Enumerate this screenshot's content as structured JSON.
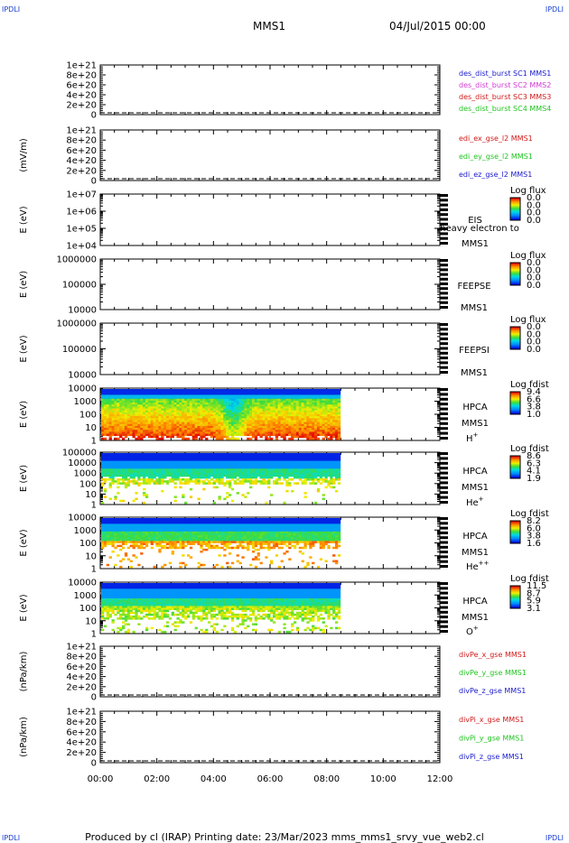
{
  "header": {
    "corner_left": "IPDLI",
    "corner_right": "IPDLI",
    "title": "MMS1",
    "date": "04/Jul/2015 00:00"
  },
  "footer": {
    "text": "Produced by cl (IRAP)   Printing date: 23/Mar/2023   mms_mms1_srvy_vue_web2.cl"
  },
  "colors": {
    "blue": "#1a1acc",
    "magenta": "#d13cd1",
    "red": "#d11a1a",
    "green": "#22c422",
    "dashed": "#000000"
  },
  "chart_data": [
    {
      "id": "p1",
      "type": "line",
      "ylabel": "",
      "yticks": [
        "1e+21",
        "8e+20",
        "6e+20",
        "4e+20",
        "2e+20",
        "0"
      ],
      "legend": [
        {
          "label": "des_dist_burst SC1 MMS1",
          "color": "blue"
        },
        {
          "label": "des_dist_burst SC2 MMS2",
          "color": "magenta"
        },
        {
          "label": "des_dist_burst SC3 MMS3",
          "color": "red"
        },
        {
          "label": "des_dist_burst SC4 MMS4",
          "color": "green"
        }
      ],
      "ylim": [
        0,
        1e+21
      ],
      "zero_line": true
    },
    {
      "id": "p2",
      "type": "line",
      "ylabel": "(mV/m)",
      "yticks": [
        "1e+21",
        "8e+20",
        "6e+20",
        "4e+20",
        "2e+20",
        "0"
      ],
      "legend": [
        {
          "label": "edi_ex_gse_l2 MMS1",
          "color": "red"
        },
        {
          "label": "edi_ey_gse_l2 MMS1",
          "color": "green"
        },
        {
          "label": "edi_ez_gse_l2 MMS1",
          "color": "blue"
        }
      ],
      "ylim": [
        0,
        1e+21
      ],
      "zero_line": true
    },
    {
      "id": "p3",
      "type": "heatmap",
      "ylabel": "E (eV)",
      "yticks": [
        "1e+07",
        "1e+06",
        "1e+05",
        "1e+04"
      ],
      "labels": [
        "EIS",
        "heavy electron to",
        "MMS1"
      ],
      "cbar_title": "Log flux",
      "cbar_ticks": [
        "0.0",
        "0.0",
        "0.0",
        "0.0"
      ]
    },
    {
      "id": "p4",
      "type": "heatmap",
      "ylabel": "E (eV)",
      "yticks": [
        "1000000",
        "100000",
        "10000"
      ],
      "labels": [
        "FEEPSE",
        "MMS1"
      ],
      "cbar_title": "Log flux",
      "cbar_ticks": [
        "0.0",
        "0.0",
        "0.0",
        "0.0"
      ]
    },
    {
      "id": "p5",
      "type": "heatmap",
      "ylabel": "E (eV)",
      "yticks": [
        "1000000",
        "100000",
        "10000"
      ],
      "labels": [
        "FEEPSI",
        "MMS1"
      ],
      "cbar_title": "Log flux",
      "cbar_ticks": [
        "0.0",
        "0.0",
        "0.0",
        "0.0"
      ]
    },
    {
      "id": "p6",
      "type": "heatmap",
      "ylabel": "E (eV)",
      "yticks": [
        "10000",
        "1000",
        "100",
        "10",
        "1"
      ],
      "labels": [
        "HPCA",
        "MMS1",
        "H+"
      ],
      "cbar_title": "Log fdist",
      "cbar_ticks": [
        "9.4",
        "6.6",
        "3.8",
        "1.0"
      ],
      "data_x_end_hours": 8.45,
      "profile": "hplus"
    },
    {
      "id": "p7",
      "type": "heatmap",
      "ylabel": "E (eV)",
      "yticks": [
        "100000",
        "10000",
        "1000",
        "100",
        "10",
        "1"
      ],
      "labels": [
        "HPCA",
        "MMS1",
        "He+"
      ],
      "cbar_title": "Log fdist",
      "cbar_ticks": [
        "8.6",
        "6.3",
        "4.1",
        "1.9"
      ],
      "data_x_end_hours": 8.45,
      "profile": "heplus"
    },
    {
      "id": "p8",
      "type": "heatmap",
      "ylabel": "E (eV)",
      "yticks": [
        "10000",
        "1000",
        "100",
        "10",
        "1"
      ],
      "labels": [
        "HPCA",
        "MMS1",
        "He++"
      ],
      "cbar_title": "Log fdist",
      "cbar_ticks": [
        "8.2",
        "6.0",
        "3.8",
        "1.6"
      ],
      "data_x_end_hours": 8.45,
      "profile": "heplusplus"
    },
    {
      "id": "p9",
      "type": "heatmap",
      "ylabel": "E (eV)",
      "yticks": [
        "10000",
        "1000",
        "100",
        "10",
        "1"
      ],
      "labels": [
        "HPCA",
        "MMS1",
        "O+"
      ],
      "cbar_title": "Log fdist",
      "cbar_ticks": [
        "11.5",
        "8.7",
        "5.9",
        "3.1"
      ],
      "data_x_end_hours": 8.45,
      "profile": "oplus"
    },
    {
      "id": "p10",
      "type": "line",
      "ylabel": "(nPa/km)",
      "yticks": [
        "1e+21",
        "8e+20",
        "6e+20",
        "4e+20",
        "2e+20",
        "0"
      ],
      "legend": [
        {
          "label": "divPe_x_gse MMS1",
          "color": "red"
        },
        {
          "label": "divPe_y_gse MMS1",
          "color": "green"
        },
        {
          "label": "divPe_z_gse MMS1",
          "color": "blue"
        }
      ],
      "ylim": [
        0,
        1e+21
      ],
      "zero_line": true
    },
    {
      "id": "p11",
      "type": "line",
      "ylabel": "(nPa/km)",
      "yticks": [
        "1e+21",
        "8e+20",
        "6e+20",
        "4e+20",
        "2e+20",
        "0"
      ],
      "legend": [
        {
          "label": "divPi_x_gse MMS1",
          "color": "red"
        },
        {
          "label": "divPi_y_gse MMS1",
          "color": "green"
        },
        {
          "label": "divPi_z_gse MMS1",
          "color": "blue"
        }
      ],
      "ylim": [
        0,
        1e+21
      ],
      "zero_line": true
    }
  ],
  "x_axis": {
    "ticks": [
      "00:00",
      "02:00",
      "04:00",
      "06:00",
      "08:00",
      "10:00",
      "12:00"
    ],
    "range_hours": [
      0,
      12
    ]
  }
}
